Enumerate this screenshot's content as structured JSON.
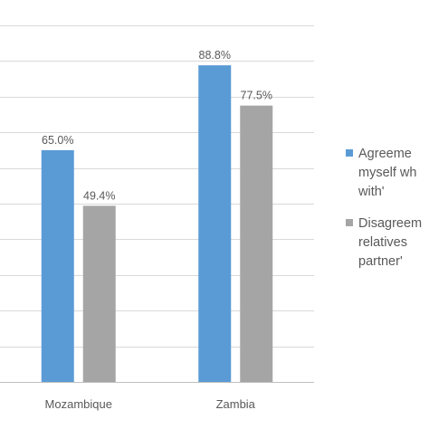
{
  "chart_data": {
    "type": "bar",
    "categories": [
      "Mozambique",
      "Zambia"
    ],
    "series": [
      {
        "name": "Agreeme\nmyself wh\nwith'",
        "values": [
          65.0,
          88.8
        ],
        "color": "#5b9bd5"
      },
      {
        "name": "Disagreem\nrelatives\npartner'",
        "values": [
          49.4,
          77.5
        ],
        "color": "#a5a5a5"
      }
    ],
    "data_labels": [
      [
        "65.0%",
        "88.8%"
      ],
      [
        "49.4%",
        "77.5%"
      ]
    ],
    "ylim": [
      0,
      100
    ],
    "grid": true,
    "legend_position": "right"
  }
}
